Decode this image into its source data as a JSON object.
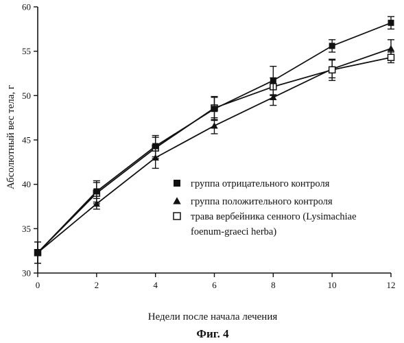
{
  "chart_data": {
    "type": "line",
    "title": "",
    "xlabel": "Недели после начала лечения",
    "ylabel": "Абсолютный вес тела, г",
    "x": [
      0,
      2,
      4,
      6,
      8,
      10,
      12
    ],
    "xticks": [
      "0",
      "2",
      "4",
      "6",
      "8",
      "10",
      "12"
    ],
    "yticks": [
      "30",
      "35",
      "40",
      "45",
      "50",
      "55",
      "60"
    ],
    "xlim": [
      0,
      12
    ],
    "ylim": [
      30,
      60
    ],
    "grid": false,
    "legend_position": "right",
    "series": [
      {
        "name": "группа отрицательного контроля",
        "marker": "filled-square",
        "values": [
          32.3,
          39.2,
          44.3,
          48.5,
          51.7,
          55.6,
          58.2
        ],
        "errors": [
          1.2,
          1.2,
          1.2,
          1.3,
          1.6,
          0.7,
          0.7
        ]
      },
      {
        "name": "группа положительного контроля",
        "marker": "filled-triangle",
        "values": [
          32.3,
          37.8,
          43.0,
          46.6,
          49.8,
          53.0,
          55.3
        ],
        "errors": [
          1.2,
          0.6,
          1.2,
          0.9,
          0.9,
          1.0,
          1.0
        ]
      },
      {
        "name_lines": [
          "трава вербейника сенного (Lysimachiae",
          "foenum-graeci herba)"
        ],
        "marker": "open-square",
        "values": [
          32.3,
          39.0,
          44.1,
          48.6,
          51.0,
          52.9,
          54.3
        ],
        "errors": [
          1.2,
          1.2,
          1.2,
          1.3,
          1.0,
          1.2,
          0.6
        ]
      }
    ]
  },
  "caption": "Фиг. 4"
}
